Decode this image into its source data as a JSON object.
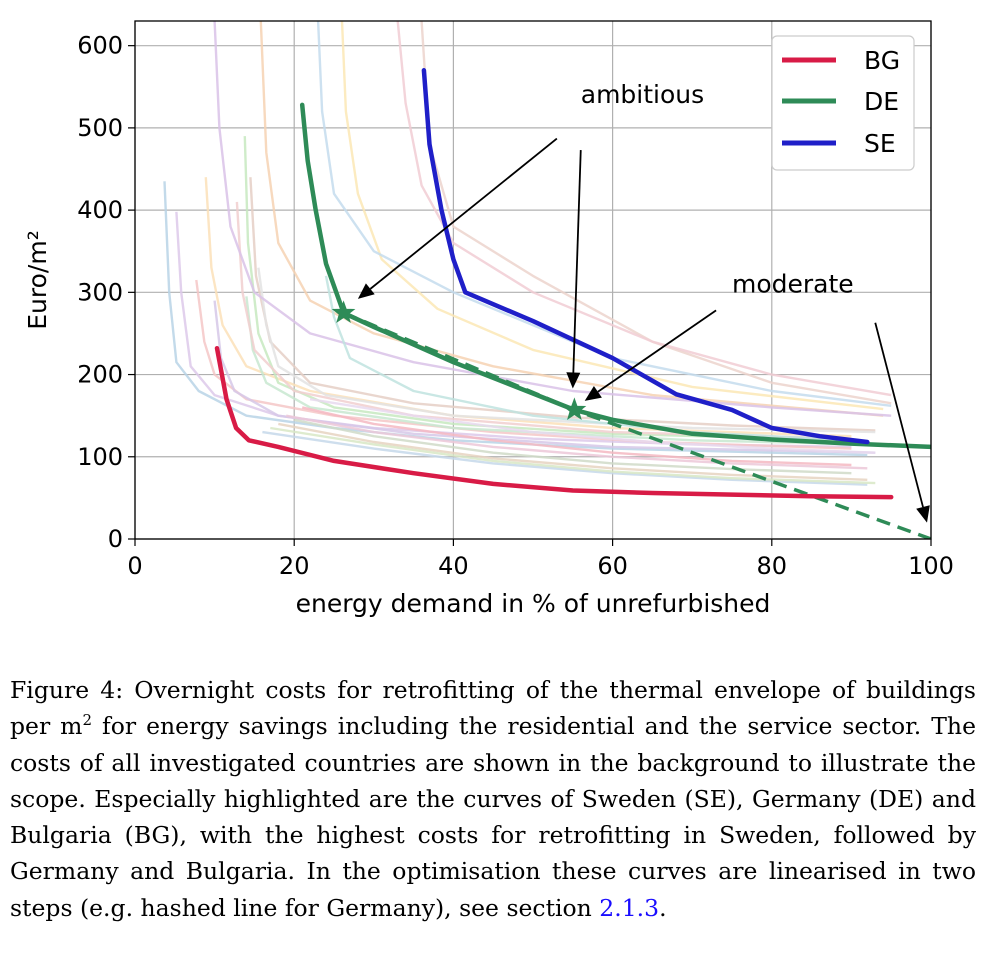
{
  "chart_data": {
    "type": "line",
    "xlabel": "energy demand in % of unrefurbished",
    "ylabel": "Euro/m²",
    "xlim": [
      0,
      100
    ],
    "ylim": [
      0,
      630
    ],
    "x_ticks": [
      "0",
      "20",
      "40",
      "60",
      "80",
      "100"
    ],
    "y_ticks": [
      "0",
      "100",
      "200",
      "300",
      "400",
      "500",
      "600"
    ],
    "grid": true,
    "legend_position": "top-right",
    "series": [
      {
        "name": "BG",
        "color": "#d81b46",
        "points": [
          [
            10.3,
            232
          ],
          [
            11.5,
            170
          ],
          [
            12.7,
            135
          ],
          [
            14.3,
            120
          ],
          [
            18,
            112
          ],
          [
            25,
            95
          ],
          [
            35,
            80
          ],
          [
            45,
            67
          ],
          [
            55,
            59
          ],
          [
            65,
            56
          ],
          [
            75,
            54
          ],
          [
            85,
            52
          ],
          [
            95,
            51
          ]
        ]
      },
      {
        "name": "DE",
        "color": "#2e8b57",
        "points": [
          [
            21,
            528
          ],
          [
            21.7,
            460
          ],
          [
            22.7,
            400
          ],
          [
            24,
            335
          ],
          [
            26.2,
            275
          ],
          [
            30,
            258
          ],
          [
            40,
            215
          ],
          [
            50,
            177
          ],
          [
            55.2,
            157
          ],
          [
            60,
            145
          ],
          [
            70,
            128
          ],
          [
            80,
            121
          ],
          [
            90,
            116
          ],
          [
            100,
            112
          ]
        ]
      },
      {
        "name": "SE",
        "color": "#1f1fc8",
        "points": [
          [
            36.3,
            570
          ],
          [
            37,
            480
          ],
          [
            38.5,
            400
          ],
          [
            40,
            340
          ],
          [
            41.5,
            300
          ],
          [
            50,
            265
          ],
          [
            60,
            220
          ],
          [
            68,
            176
          ],
          [
            75,
            157
          ],
          [
            80,
            135
          ],
          [
            86,
            125
          ],
          [
            92,
            118
          ]
        ]
      }
    ],
    "linearised_DE": {
      "points": [
        [
          26.2,
          275
        ],
        [
          55.2,
          157
        ],
        [
          100,
          0
        ]
      ],
      "color": "#2e8b57"
    },
    "markers": [
      {
        "series": "DE",
        "x": 26.2,
        "y": 275
      },
      {
        "series": "DE",
        "x": 55.2,
        "y": 157
      }
    ],
    "background_series": [
      {
        "color": "#b9d3e6",
        "points": [
          [
            3.7,
            435
          ],
          [
            4.3,
            300
          ],
          [
            5.2,
            215
          ],
          [
            8,
            180
          ],
          [
            14,
            150
          ],
          [
            25,
            135
          ],
          [
            40,
            120
          ],
          [
            60,
            110
          ],
          [
            80,
            105
          ],
          [
            92,
            102
          ]
        ]
      },
      {
        "color": "#ddc9ea",
        "points": [
          [
            5.2,
            398
          ],
          [
            5.8,
            300
          ],
          [
            7,
            210
          ],
          [
            10,
            175
          ],
          [
            18,
            150
          ],
          [
            30,
            135
          ],
          [
            50,
            122
          ],
          [
            70,
            115
          ],
          [
            90,
            112
          ]
        ]
      },
      {
        "color": "#f5c7c7",
        "points": [
          [
            7.7,
            315
          ],
          [
            8.7,
            240
          ],
          [
            10,
            200
          ],
          [
            14,
            170
          ],
          [
            25,
            150
          ],
          [
            45,
            130
          ],
          [
            65,
            118
          ],
          [
            90,
            110
          ]
        ]
      },
      {
        "color": "#fbe0b8",
        "points": [
          [
            8.9,
            440
          ],
          [
            9.6,
            330
          ],
          [
            11,
            260
          ],
          [
            14,
            210
          ],
          [
            22,
            180
          ],
          [
            40,
            150
          ],
          [
            60,
            135
          ],
          [
            90,
            125
          ]
        ]
      },
      {
        "color": "#c7e9c0",
        "points": [
          [
            13.8,
            490
          ],
          [
            14.2,
            360
          ],
          [
            15.5,
            250
          ],
          [
            18,
            190
          ],
          [
            25,
            160
          ],
          [
            40,
            140
          ],
          [
            60,
            128
          ],
          [
            90,
            120
          ]
        ]
      },
      {
        "color": "#e5cfc5",
        "points": [
          [
            14.5,
            440
          ],
          [
            15.2,
            320
          ],
          [
            17,
            240
          ],
          [
            22,
            190
          ],
          [
            35,
            165
          ],
          [
            55,
            148
          ],
          [
            75,
            138
          ],
          [
            93,
            132
          ]
        ]
      },
      {
        "color": "#c8e8d0",
        "points": [
          [
            14,
            295
          ],
          [
            14.8,
            230
          ],
          [
            16.5,
            190
          ],
          [
            22,
            160
          ],
          [
            40,
            135
          ],
          [
            70,
            120
          ],
          [
            93,
            115
          ]
        ]
      },
      {
        "color": "#e3e3e3",
        "points": [
          [
            15.5,
            330
          ],
          [
            16.5,
            260
          ],
          [
            18,
            210
          ],
          [
            24,
            175
          ],
          [
            40,
            150
          ],
          [
            70,
            135
          ],
          [
            93,
            130
          ]
        ]
      },
      {
        "color": "#f1cfcf",
        "points": [
          [
            12.8,
            410
          ],
          [
            13.5,
            300
          ],
          [
            15,
            230
          ],
          [
            20,
            180
          ],
          [
            35,
            150
          ],
          [
            60,
            130
          ],
          [
            90,
            122
          ]
        ]
      },
      {
        "color": "#d6c8e8",
        "points": [
          [
            10,
            290
          ],
          [
            10.8,
            220
          ],
          [
            12.5,
            180
          ],
          [
            18,
            150
          ],
          [
            35,
            128
          ],
          [
            60,
            112
          ],
          [
            93,
            105
          ]
        ]
      },
      {
        "color": "#f6d2b3",
        "points": [
          [
            15.8,
            630
          ],
          [
            16.5,
            470
          ],
          [
            18,
            360
          ],
          [
            22,
            290
          ],
          [
            30,
            250
          ],
          [
            45,
            210
          ],
          [
            65,
            175
          ],
          [
            94,
            150
          ]
        ]
      },
      {
        "color": "#fbe8b5",
        "points": [
          [
            26,
            630
          ],
          [
            26.5,
            520
          ],
          [
            28,
            420
          ],
          [
            31,
            340
          ],
          [
            38,
            280
          ],
          [
            50,
            230
          ],
          [
            70,
            185
          ],
          [
            94,
            158
          ]
        ]
      },
      {
        "color": "#c4dced",
        "points": [
          [
            23,
            630
          ],
          [
            23.5,
            520
          ],
          [
            25,
            420
          ],
          [
            30,
            350
          ],
          [
            40,
            300
          ],
          [
            60,
            220
          ],
          [
            80,
            180
          ],
          [
            95,
            162
          ]
        ]
      },
      {
        "color": "#ecd3cc",
        "points": [
          [
            36,
            630
          ],
          [
            37,
            480
          ],
          [
            40,
            380
          ],
          [
            50,
            320
          ],
          [
            65,
            240
          ],
          [
            80,
            190
          ],
          [
            95,
            165
          ]
        ]
      },
      {
        "color": "#d9c2e8",
        "points": [
          [
            10,
            630
          ],
          [
            10.6,
            500
          ],
          [
            12,
            380
          ],
          [
            15,
            300
          ],
          [
            22,
            250
          ],
          [
            35,
            215
          ],
          [
            55,
            180
          ],
          [
            80,
            160
          ],
          [
            95,
            150
          ]
        ]
      },
      {
        "color": "#f1ccd4",
        "points": [
          [
            33,
            630
          ],
          [
            34,
            530
          ],
          [
            36,
            430
          ],
          [
            40,
            360
          ],
          [
            50,
            300
          ],
          [
            65,
            240
          ],
          [
            80,
            200
          ],
          [
            95,
            175
          ]
        ]
      },
      {
        "color": "#bfe3df",
        "points": [
          [
            24,
            320
          ],
          [
            25,
            270
          ],
          [
            27,
            220
          ],
          [
            35,
            180
          ],
          [
            50,
            150
          ],
          [
            70,
            130
          ],
          [
            90,
            120
          ]
        ]
      },
      {
        "color": "#f4b9c2",
        "points": [
          [
            21,
            160
          ],
          [
            30,
            140
          ],
          [
            45,
            120
          ],
          [
            60,
            105
          ],
          [
            75,
            95
          ],
          [
            90,
            90
          ]
        ]
      },
      {
        "color": "#d0dbc8",
        "points": [
          [
            20,
            145
          ],
          [
            30,
            125
          ],
          [
            45,
            105
          ],
          [
            60,
            92
          ],
          [
            75,
            85
          ],
          [
            90,
            80
          ]
        ]
      },
      {
        "color": "#e6d3c1",
        "points": [
          [
            18,
            140
          ],
          [
            30,
            118
          ],
          [
            45,
            98
          ],
          [
            60,
            86
          ],
          [
            75,
            78
          ],
          [
            92,
            72
          ]
        ]
      },
      {
        "color": "#c6d8ea",
        "points": [
          [
            16,
            130
          ],
          [
            30,
            110
          ],
          [
            45,
            92
          ],
          [
            60,
            80
          ],
          [
            75,
            72
          ],
          [
            92,
            66
          ]
        ]
      },
      {
        "color": "#ecc8d8",
        "points": [
          [
            19,
            150
          ],
          [
            30,
            130
          ],
          [
            45,
            112
          ],
          [
            60,
            100
          ],
          [
            75,
            92
          ],
          [
            92,
            86
          ]
        ]
      },
      {
        "color": "#d8e8c6",
        "points": [
          [
            17,
            135
          ],
          [
            30,
            115
          ],
          [
            45,
            95
          ],
          [
            60,
            82
          ],
          [
            75,
            74
          ],
          [
            93,
            68
          ]
        ]
      },
      {
        "color": "#e8d9ef",
        "points": [
          [
            22,
            170
          ],
          [
            35,
            150
          ],
          [
            50,
            130
          ],
          [
            65,
            118
          ],
          [
            80,
            110
          ],
          [
            93,
            105
          ]
        ]
      }
    ],
    "annotations": [
      {
        "text": "ambitious",
        "x": 56,
        "y": 530
      },
      {
        "text": "moderate",
        "x": 75,
        "y": 300
      }
    ],
    "annotation_arrows": [
      {
        "from": [
          53,
          487
        ],
        "to": [
          28,
          292
        ]
      },
      {
        "from": [
          56,
          473
        ],
        "to": [
          55,
          183
        ]
      },
      {
        "from": [
          73,
          278
        ],
        "to": [
          56.5,
          168
        ]
      },
      {
        "from": [
          93,
          263
        ],
        "to": [
          99.5,
          20
        ]
      }
    ]
  },
  "caption": {
    "line1": "Figure 4: Overnight costs for retrofitting of the thermal envelope of",
    "line2_a": "buildings per m",
    "line2_sup": "2",
    "line2_b": " for energy savings including the residential and the",
    "line3": "service sector. The costs of all investigated countries are shown in",
    "line4": "the background to illustrate the scope. Especially highlighted are",
    "line5": "the curves of Sweden (SE), Germany (DE) and Bulgaria (BG), with",
    "line6": "the highest costs for retrofitting in Sweden, followed by Germany",
    "line7": "and Bulgaria. In the optimisation these curves are linearised in two",
    "line8_a": "steps (e.g. hashed line for Germany), see section ",
    "line8_link": "2.1.3",
    "line8_b": "."
  }
}
